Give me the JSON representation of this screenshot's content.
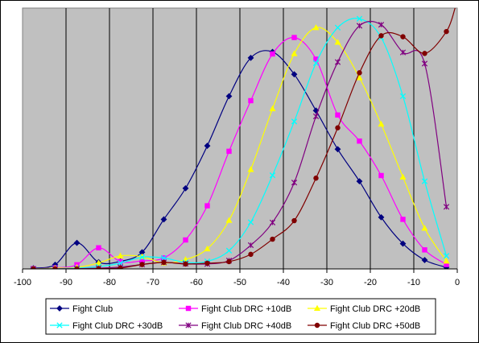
{
  "chart_data": {
    "type": "line",
    "title": "",
    "xlabel": "",
    "ylabel": "",
    "xlim": [
      -100,
      0
    ],
    "ylim": [
      0,
      1
    ],
    "x_ticks": [
      "-100",
      "-90",
      "-80",
      "-70",
      "-60",
      "-50",
      "-40",
      "-30",
      "-20",
      "-10",
      "0"
    ],
    "y_tick_labels_shown": false,
    "grid": "vertical",
    "plot_background": "#c0c0c0",
    "legend_position": "bottom",
    "series": [
      {
        "name": "Fight Club",
        "color": "#000080",
        "marker": "diamond",
        "x": [
          -97.5,
          -92.5,
          -87.5,
          -82.5,
          -77.5,
          -72.5,
          -67.5,
          -62.5,
          -57.5,
          -52.5,
          -47.5,
          -42.5,
          -37.5,
          -32.5,
          -27.5,
          -22.5,
          -17.5,
          -12.5,
          -7.5,
          -2.5
        ],
        "y": [
          0.003,
          0.016,
          0.1,
          0.026,
          0.029,
          0.064,
          0.19,
          0.309,
          0.472,
          0.662,
          0.809,
          0.832,
          0.746,
          0.607,
          0.459,
          0.336,
          0.198,
          0.097,
          0.034,
          0.006
        ]
      },
      {
        "name": "Fight Club DRC +10dB",
        "color": "#ff00ff",
        "marker": "square",
        "x": [
          -97.5,
          -92.5,
          -87.5,
          -82.5,
          -77.5,
          -72.5,
          -67.5,
          -62.5,
          -57.5,
          -52.5,
          -47.5,
          -42.5,
          -37.5,
          -32.5,
          -27.5,
          -22.5,
          -17.5,
          -12.5,
          -7.5,
          -2.5
        ],
        "y": [
          0.001,
          0.004,
          0.016,
          0.081,
          0.028,
          0.031,
          0.042,
          0.111,
          0.242,
          0.451,
          0.645,
          0.824,
          0.887,
          0.804,
          0.59,
          0.49,
          0.358,
          0.19,
          0.073,
          0.017
        ]
      },
      {
        "name": "Fight Club DRC +20dB",
        "color": "#ffff00",
        "marker": "triangle",
        "x": [
          -97.5,
          -92.5,
          -87.5,
          -82.5,
          -77.5,
          -72.5,
          -67.5,
          -62.5,
          -57.5,
          -52.5,
          -47.5,
          -42.5,
          -37.5,
          -32.5,
          -27.5,
          -22.5,
          -17.5,
          -12.5,
          -7.5,
          -2.5
        ],
        "y": [
          0.0,
          0.003,
          0.006,
          0.023,
          0.05,
          0.047,
          0.023,
          0.036,
          0.077,
          0.186,
          0.381,
          0.614,
          0.825,
          0.925,
          0.869,
          0.733,
          0.555,
          0.352,
          0.156,
          0.03
        ]
      },
      {
        "name": "Fight Club DRC +30dB",
        "color": "#00ffff",
        "marker": "x",
        "x": [
          -97.5,
          -92.5,
          -87.5,
          -82.5,
          -77.5,
          -72.5,
          -67.5,
          -62.5,
          -57.5,
          -52.5,
          -47.5,
          -42.5,
          -37.5,
          -32.5,
          -27.5,
          -22.5,
          -17.5,
          -12.5,
          -7.5,
          -2.5
        ],
        "y": [
          0.0,
          0.001,
          0.003,
          0.009,
          0.022,
          0.045,
          0.042,
          0.025,
          0.029,
          0.07,
          0.179,
          0.359,
          0.565,
          0.789,
          0.925,
          0.959,
          0.887,
          0.662,
          0.336,
          0.05
        ]
      },
      {
        "name": "Fight Club DRC +40dB",
        "color": "#800080",
        "marker": "star",
        "x": [
          -97.5,
          -92.5,
          -87.5,
          -82.5,
          -77.5,
          -72.5,
          -67.5,
          -62.5,
          -57.5,
          -52.5,
          -47.5,
          -42.5,
          -37.5,
          -32.5,
          -27.5,
          -22.5,
          -17.5,
          -12.5,
          -7.5,
          -2.5
        ],
        "y": [
          0.0,
          0.0,
          0.001,
          0.003,
          0.007,
          0.017,
          0.025,
          0.02,
          0.019,
          0.032,
          0.091,
          0.178,
          0.331,
          0.585,
          0.793,
          0.932,
          0.936,
          0.83,
          0.787,
          0.238
        ]
      },
      {
        "name": "Fight Club DRC +50dB",
        "color": "#800000",
        "marker": "circle",
        "x": [
          -97.5,
          -92.5,
          -87.5,
          -82.5,
          -77.5,
          -72.5,
          -67.5,
          -62.5,
          -57.5,
          -52.5,
          -47.5,
          -42.5,
          -37.5,
          -32.5,
          -27.5,
          -22.5,
          -17.5,
          -12.5,
          -7.5,
          -2.5,
          -0.5
        ],
        "y": [
          0.0,
          0.0,
          0.0,
          0.001,
          0.003,
          0.017,
          0.025,
          0.019,
          0.022,
          0.028,
          0.056,
          0.114,
          0.185,
          0.348,
          0.541,
          0.752,
          0.894,
          0.89,
          0.826,
          0.91,
          1.0
        ]
      }
    ]
  }
}
